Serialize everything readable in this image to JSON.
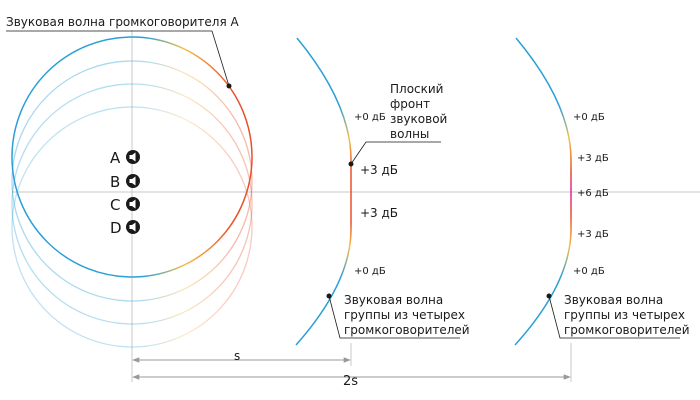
{
  "labels": {
    "speaker_a_wave": "Звуковая волна громкоговорителя A",
    "flat_front": [
      "Плоский",
      "фронт",
      "звуковой",
      "волны"
    ],
    "group_wave": [
      "Звуковая волна",
      "группы из четырех",
      "громкоговорителей"
    ],
    "distance_s": "s",
    "distance_2s": "2s"
  },
  "speakers": [
    "A",
    "B",
    "C",
    "D"
  ],
  "levels": {
    "front_1": [
      "+0 дБ",
      "+3 дБ",
      "+3 дБ",
      "+0 дБ"
    ],
    "front_2": [
      "+0 дБ",
      "+3 дБ",
      "+6 дБ",
      "+3 дБ",
      "+0 дБ"
    ]
  },
  "colors": {
    "low": "#2a9fd6",
    "mid": "#f5c04a",
    "high": "#e8502a",
    "peak": "#d8269a",
    "axis": "#c8c8c8",
    "dim": "#999999"
  },
  "icons": [
    "speaker-icon"
  ]
}
